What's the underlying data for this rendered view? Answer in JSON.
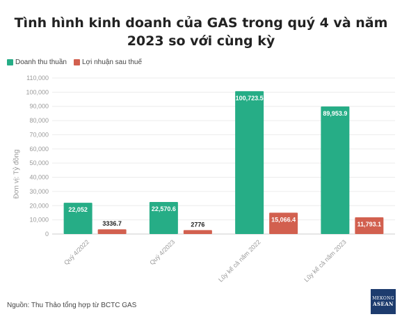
{
  "title": "Tình hình kinh doanh của GAS trong quý 4 và năm 2023 so với cùng kỳ",
  "source": "Nguồn: Thu Thảo tổng hợp từ BCTC GAS",
  "logo": {
    "line1": "MEKONG",
    "line2": "ASEAN"
  },
  "colors": {
    "revenue": "#26ad86",
    "profit": "#d2604f"
  },
  "chart_data": {
    "type": "bar",
    "title": "Tình hình kinh doanh của GAS trong quý 4 và năm 2023 so với cùng kỳ",
    "ylabel": "Đơn vị: Tỷ đồng",
    "xlabel": "",
    "categories": [
      "Quý 4/2022",
      "Quý 4/2023",
      "Lũy kế cả năm 2022",
      "Lũy kế cả năm 2023"
    ],
    "ylim": [
      0,
      110000
    ],
    "yticks": [
      0,
      10000,
      20000,
      30000,
      40000,
      50000,
      60000,
      70000,
      80000,
      90000,
      100000,
      110000
    ],
    "ytick_labels": [
      "0",
      "10,000",
      "20,000",
      "30,000",
      "40,000",
      "50,000",
      "60,000",
      "70,000",
      "80,000",
      "90,000",
      "100,000",
      "110,000"
    ],
    "legend_position": "top-left",
    "grid": true,
    "series": [
      {
        "name": "Doanh thu thuần",
        "values": [
          22052,
          22570.6,
          100723.5,
          89953.9
        ],
        "labels": [
          "22,052",
          "22,570.6",
          "100,723.5",
          "89,953.9"
        ]
      },
      {
        "name": "Lợi nhuận sau thuế",
        "values": [
          3336.7,
          2776,
          15066.4,
          11793.1
        ],
        "labels": [
          "3336.7",
          "2776",
          "15,066.4",
          "11,793.1"
        ]
      }
    ]
  }
}
